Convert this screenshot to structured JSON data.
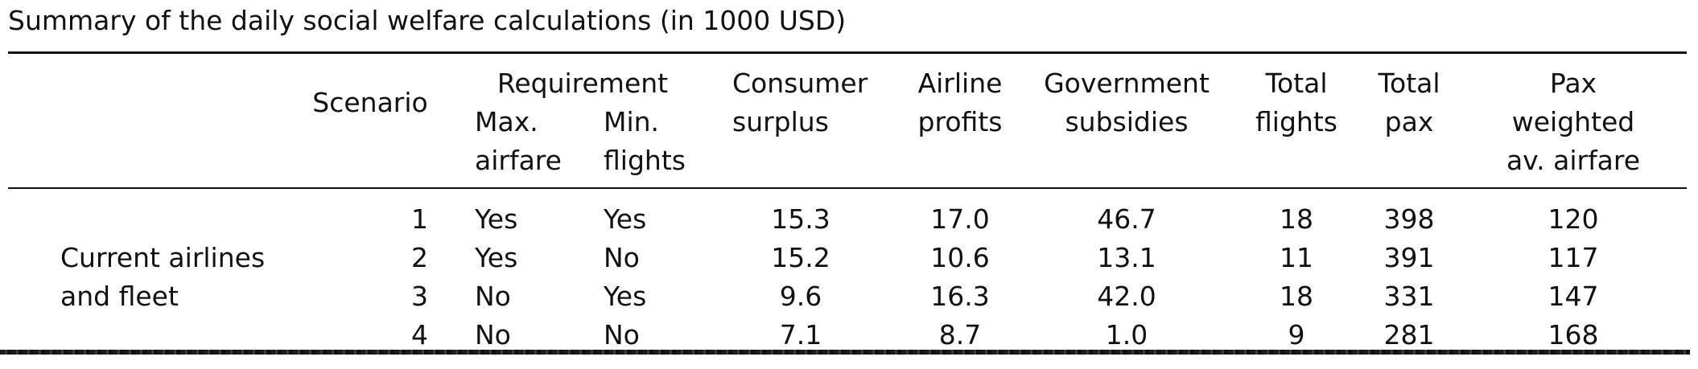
{
  "caption": "Summary of the daily social welfare calculations (in 1000 USD)",
  "header": {
    "scenario": "Scenario",
    "requirement": "Requirement",
    "max_airfare": [
      "Max.",
      "airfare"
    ],
    "min_flights": [
      "Min.",
      "flights"
    ],
    "consumer_surplus": [
      "Consumer",
      "surplus"
    ],
    "airline_profits": [
      "Airline",
      "profits"
    ],
    "government_subsidies": [
      "Government",
      "subsidies"
    ],
    "total_flights": [
      "Total",
      "flights"
    ],
    "total_pax": [
      "Total",
      "pax"
    ],
    "pax_weighted_airfare": [
      "Pax",
      "weighted",
      "av. airfare"
    ]
  },
  "group_label": [
    "Current airlines",
    "and fleet"
  ],
  "rows": [
    {
      "scenario": "1",
      "max_airfare": "Yes",
      "min_flights": "Yes",
      "consumer_surplus": "15.3",
      "airline_profits": "17.0",
      "government_subsidies": "46.7",
      "total_flights": "18",
      "total_pax": "398",
      "pax_weighted_airfare": "120"
    },
    {
      "scenario": "2",
      "max_airfare": "Yes",
      "min_flights": "No",
      "consumer_surplus": "15.2",
      "airline_profits": "10.6",
      "government_subsidies": "13.1",
      "total_flights": "11",
      "total_pax": "391",
      "pax_weighted_airfare": "117"
    },
    {
      "scenario": "3",
      "max_airfare": "No",
      "min_flights": "Yes",
      "consumer_surplus": "9.6",
      "airline_profits": "16.3",
      "government_subsidies": "42.0",
      "total_flights": "18",
      "total_pax": "331",
      "pax_weighted_airfare": "147"
    },
    {
      "scenario": "4",
      "max_airfare": "No",
      "min_flights": "No",
      "consumer_surplus": "7.1",
      "airline_profits": "8.7",
      "government_subsidies": "1.0",
      "total_flights": "9",
      "total_pax": "281",
      "pax_weighted_airfare": "168"
    }
  ]
}
